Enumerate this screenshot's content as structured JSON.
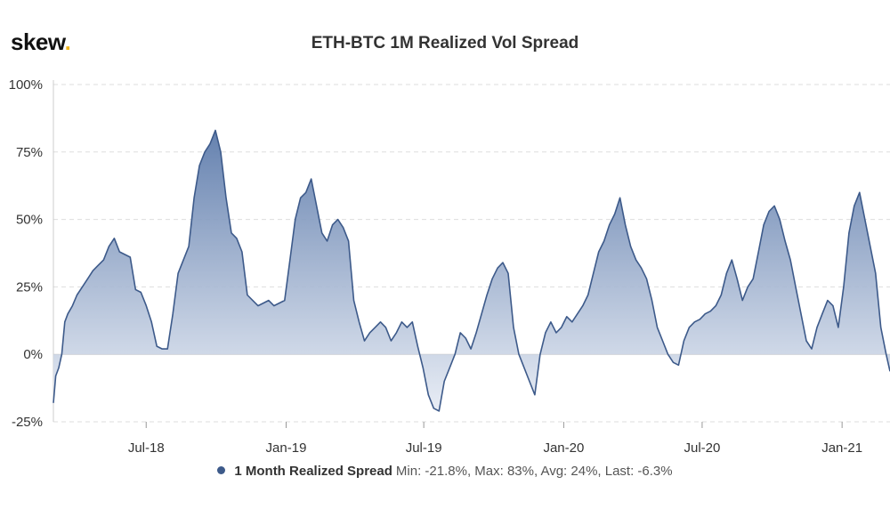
{
  "logo": {
    "text": "skew",
    "dot": "."
  },
  "chart_data": {
    "type": "area",
    "title": "ETH-BTC 1M Realized Vol Spread",
    "xlabel": "",
    "ylabel": "",
    "ylim": [
      -25,
      100
    ],
    "xlim": [
      "2018-03-01",
      "2021-03-05"
    ],
    "grid": true,
    "legend_position": "bottom-center",
    "y_ticks": [
      {
        "value": 100,
        "label": "100%"
      },
      {
        "value": 75,
        "label": "75%"
      },
      {
        "value": 50,
        "label": "50%"
      },
      {
        "value": 25,
        "label": "25%"
      },
      {
        "value": 0,
        "label": "0%"
      },
      {
        "value": -25,
        "label": "-25%"
      }
    ],
    "x_ticks": [
      {
        "value": "2018-07-01",
        "label": "Jul-18"
      },
      {
        "value": "2019-01-01",
        "label": "Jan-19"
      },
      {
        "value": "2019-07-01",
        "label": "Jul-19"
      },
      {
        "value": "2020-01-01",
        "label": "Jan-20"
      },
      {
        "value": "2020-07-01",
        "label": "Jul-20"
      },
      {
        "value": "2021-01-01",
        "label": "Jan-21"
      }
    ],
    "colors": {
      "line": "#3d5a8a",
      "fill_top": "#5d7bab",
      "fill_bottom": "#e6ebf4",
      "grid": "#dddddd",
      "zero": "#cccccc"
    },
    "series": [
      {
        "name": "1 Month Realized Spread",
        "stats": "Min: -21.8%, Max: 83%, Avg: 24%, Last: -6.3%",
        "x": [
          "2018-03-01",
          "2018-03-04",
          "2018-03-08",
          "2018-03-12",
          "2018-03-16",
          "2018-03-20",
          "2018-03-26",
          "2018-04-01",
          "2018-04-08",
          "2018-04-15",
          "2018-04-22",
          "2018-04-29",
          "2018-05-06",
          "2018-05-13",
          "2018-05-20",
          "2018-05-27",
          "2018-06-03",
          "2018-06-10",
          "2018-06-17",
          "2018-06-24",
          "2018-07-01",
          "2018-07-08",
          "2018-07-15",
          "2018-07-22",
          "2018-07-29",
          "2018-08-05",
          "2018-08-12",
          "2018-08-19",
          "2018-08-26",
          "2018-09-02",
          "2018-09-09",
          "2018-09-16",
          "2018-09-23",
          "2018-09-30",
          "2018-10-07",
          "2018-10-14",
          "2018-10-21",
          "2018-10-28",
          "2018-11-04",
          "2018-11-11",
          "2018-11-18",
          "2018-11-25",
          "2018-12-02",
          "2018-12-09",
          "2018-12-16",
          "2018-12-23",
          "2018-12-30",
          "2019-01-06",
          "2019-01-13",
          "2019-01-20",
          "2019-01-27",
          "2019-02-03",
          "2019-02-10",
          "2019-02-17",
          "2019-02-24",
          "2019-03-03",
          "2019-03-10",
          "2019-03-17",
          "2019-03-24",
          "2019-03-31",
          "2019-04-07",
          "2019-04-14",
          "2019-04-21",
          "2019-04-28",
          "2019-05-05",
          "2019-05-12",
          "2019-05-19",
          "2019-05-26",
          "2019-06-02",
          "2019-06-09",
          "2019-06-16",
          "2019-06-23",
          "2019-06-30",
          "2019-07-07",
          "2019-07-14",
          "2019-07-21",
          "2019-07-28",
          "2019-08-04",
          "2019-08-11",
          "2019-08-18",
          "2019-08-25",
          "2019-09-01",
          "2019-09-08",
          "2019-09-15",
          "2019-09-22",
          "2019-09-29",
          "2019-10-06",
          "2019-10-13",
          "2019-10-20",
          "2019-10-27",
          "2019-11-03",
          "2019-11-10",
          "2019-11-17",
          "2019-11-24",
          "2019-12-01",
          "2019-12-08",
          "2019-12-15",
          "2019-12-22",
          "2019-12-29",
          "2020-01-05",
          "2020-01-12",
          "2020-01-19",
          "2020-01-26",
          "2020-02-02",
          "2020-02-09",
          "2020-02-16",
          "2020-02-23",
          "2020-03-01",
          "2020-03-08",
          "2020-03-15",
          "2020-03-22",
          "2020-03-29",
          "2020-04-05",
          "2020-04-12",
          "2020-04-19",
          "2020-04-26",
          "2020-05-03",
          "2020-05-10",
          "2020-05-17",
          "2020-05-24",
          "2020-05-31",
          "2020-06-07",
          "2020-06-14",
          "2020-06-21",
          "2020-06-28",
          "2020-07-05",
          "2020-07-12",
          "2020-07-19",
          "2020-07-26",
          "2020-08-02",
          "2020-08-09",
          "2020-08-16",
          "2020-08-23",
          "2020-08-30",
          "2020-09-06",
          "2020-09-13",
          "2020-09-20",
          "2020-09-27",
          "2020-10-04",
          "2020-10-11",
          "2020-10-18",
          "2020-10-25",
          "2020-11-01",
          "2020-11-08",
          "2020-11-15",
          "2020-11-22",
          "2020-11-29",
          "2020-12-06",
          "2020-12-13",
          "2020-12-20",
          "2020-12-27",
          "2021-01-03",
          "2021-01-10",
          "2021-01-17",
          "2021-01-24",
          "2021-01-31",
          "2021-02-07",
          "2021-02-14",
          "2021-02-21",
          "2021-02-28",
          "2021-03-05"
        ],
        "values": [
          -18,
          -8,
          -5,
          0,
          12,
          15,
          18,
          22,
          25,
          28,
          31,
          33,
          35,
          40,
          43,
          38,
          37,
          36,
          24,
          23,
          18,
          12,
          3,
          2,
          2,
          15,
          30,
          35,
          40,
          58,
          70,
          75,
          78,
          83,
          75,
          58,
          45,
          43,
          38,
          22,
          20,
          18,
          19,
          20,
          18,
          19,
          20,
          35,
          50,
          58,
          60,
          65,
          55,
          45,
          42,
          48,
          50,
          47,
          42,
          20,
          12,
          5,
          8,
          10,
          12,
          10,
          5,
          8,
          12,
          10,
          12,
          3,
          -5,
          -15,
          -20,
          -21,
          -10,
          -5,
          0,
          8,
          6,
          2,
          8,
          15,
          22,
          28,
          32,
          34,
          30,
          10,
          0,
          -5,
          -10,
          -15,
          0,
          8,
          12,
          8,
          10,
          14,
          12,
          15,
          18,
          22,
          30,
          38,
          42,
          48,
          52,
          58,
          48,
          40,
          35,
          32,
          28,
          20,
          10,
          5,
          0,
          -3,
          -4,
          5,
          10,
          12,
          13,
          15,
          16,
          18,
          22,
          30,
          35,
          28,
          20,
          25,
          28,
          38,
          48,
          53,
          55,
          50,
          42,
          35,
          25,
          15,
          5,
          2,
          10,
          15,
          20,
          18,
          10,
          25,
          45,
          55,
          60,
          50,
          40,
          30,
          10,
          0,
          -6.3
        ]
      }
    ]
  }
}
